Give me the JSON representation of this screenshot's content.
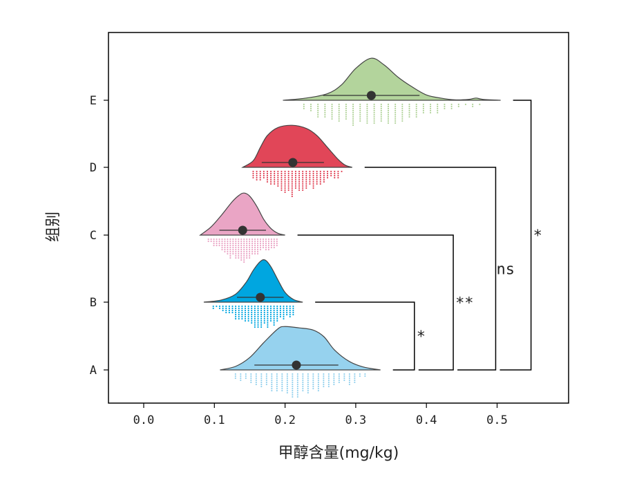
{
  "chart_data": {
    "type": "raincloud",
    "xlabel": "甲醇含量(mg/kg)",
    "ylabel": "组别",
    "xlim": [
      -0.05,
      0.6
    ],
    "xticks": [
      "0.0",
      "0.1",
      "0.2",
      "0.3",
      "0.4",
      "0.5"
    ],
    "xtick_values": [
      0.0,
      0.1,
      0.2,
      0.3,
      0.4,
      0.5
    ],
    "categories": [
      "A",
      "B",
      "C",
      "D",
      "E"
    ],
    "groups": [
      {
        "name": "A",
        "color": "#96d2ee",
        "mean": 0.216,
        "sd": 0.054,
        "min": 0.108,
        "max": 0.335,
        "density": {
          "x": [
            0.108,
            0.13,
            0.15,
            0.17,
            0.19,
            0.2,
            0.22,
            0.24,
            0.255,
            0.27,
            0.29,
            0.31,
            0.335
          ],
          "y": [
            0.0,
            0.08,
            0.28,
            0.62,
            0.93,
            0.98,
            0.95,
            0.9,
            0.75,
            0.45,
            0.2,
            0.07,
            0.0
          ]
        }
      },
      {
        "name": "B",
        "color": "#00a6e0",
        "mean": 0.165,
        "sd": 0.03,
        "min": 0.085,
        "max": 0.225,
        "density": {
          "x": [
            0.085,
            0.11,
            0.13,
            0.145,
            0.155,
            0.165,
            0.172,
            0.18,
            0.19,
            0.2,
            0.212,
            0.225
          ],
          "y": [
            0.0,
            0.05,
            0.18,
            0.45,
            0.72,
            0.92,
            0.95,
            0.8,
            0.5,
            0.22,
            0.06,
            0.0
          ]
        }
      },
      {
        "name": "C",
        "color": "#eaa5c5",
        "mean": 0.14,
        "sd": 0.03,
        "min": 0.08,
        "max": 0.2,
        "density": {
          "x": [
            0.08,
            0.095,
            0.11,
            0.125,
            0.135,
            0.142,
            0.15,
            0.16,
            0.17,
            0.18,
            0.19,
            0.2
          ],
          "y": [
            0.0,
            0.18,
            0.45,
            0.75,
            0.9,
            0.95,
            0.88,
            0.65,
            0.35,
            0.15,
            0.04,
            0.0
          ]
        }
      },
      {
        "name": "D",
        "color": "#e14658",
        "mean": 0.211,
        "sd": 0.04,
        "min": 0.14,
        "max": 0.295,
        "density": {
          "x": [
            0.14,
            0.155,
            0.165,
            0.175,
            0.19,
            0.21,
            0.23,
            0.245,
            0.26,
            0.275,
            0.285,
            0.295
          ],
          "y": [
            0.0,
            0.15,
            0.45,
            0.72,
            0.9,
            0.95,
            0.88,
            0.72,
            0.45,
            0.18,
            0.05,
            0.0
          ]
        }
      },
      {
        "name": "E",
        "color": "#b3d49c",
        "mean": 0.322,
        "sd": 0.062,
        "min": 0.197,
        "max": 0.505,
        "density": {
          "x": [
            0.197,
            0.23,
            0.26,
            0.28,
            0.3,
            0.322,
            0.34,
            0.36,
            0.38,
            0.4,
            0.42,
            0.44,
            0.46,
            0.47,
            0.48,
            0.505
          ],
          "y": [
            0.0,
            0.05,
            0.15,
            0.35,
            0.72,
            0.95,
            0.8,
            0.52,
            0.3,
            0.12,
            0.05,
            0.01,
            0.02,
            0.05,
            0.02,
            0.0
          ]
        }
      }
    ],
    "significance": [
      {
        "pair": [
          "A",
          "B"
        ],
        "label": "*",
        "bracket_x": 0.383
      },
      {
        "pair": [
          "A",
          "C"
        ],
        "label": "**",
        "bracket_x": 0.438
      },
      {
        "pair": [
          "A",
          "D"
        ],
        "label": "ns",
        "bracket_x": 0.498
      },
      {
        "pair": [
          "A",
          "E"
        ],
        "label": "*",
        "bracket_x": 0.548
      }
    ],
    "grid": false,
    "legend": "none"
  }
}
